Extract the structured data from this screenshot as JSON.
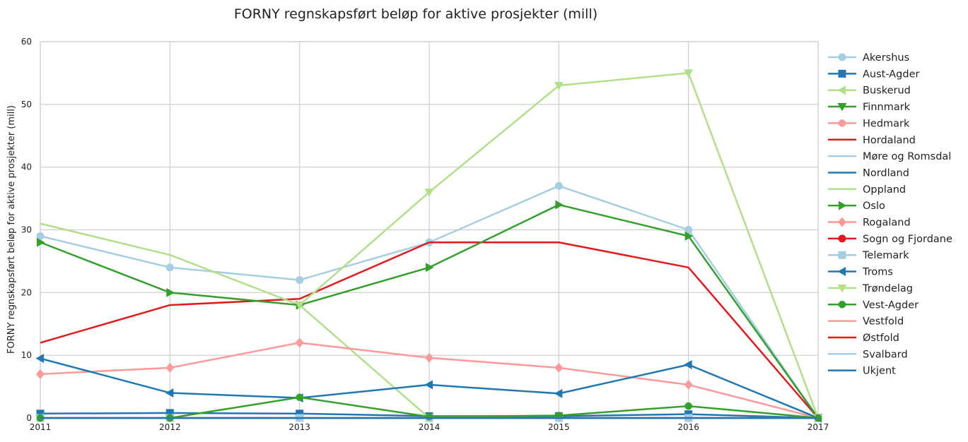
{
  "chart_data": {
    "type": "line",
    "title": "FORNY regnskapsført beløp for aktive prosjekter (mill)",
    "xlabel": "",
    "ylabel": "FORNY regnskapsført beløp for aktive prosjekter (mill)",
    "x": [
      2011,
      2012,
      2013,
      2014,
      2015,
      2016,
      2017
    ],
    "xlim": [
      2011,
      2017
    ],
    "ylim": [
      0,
      60
    ],
    "yticks": [
      0,
      10,
      20,
      30,
      40,
      50,
      60
    ],
    "grid": true,
    "legend_position": "outside-right",
    "series": [
      {
        "name": "Akershus",
        "color": "#a6cee3",
        "marker": "circle",
        "values": [
          29,
          24,
          22,
          28,
          37,
          30,
          0
        ]
      },
      {
        "name": "Aust-Agder",
        "color": "#1f78b4",
        "marker": "square",
        "values": [
          0.7,
          0.8,
          0.7,
          0.3,
          0.3,
          0.6,
          0
        ]
      },
      {
        "name": "Buskerud",
        "color": "#b2df8a",
        "marker": "triangle-left",
        "values": [
          0,
          0,
          0,
          0,
          0,
          0,
          0
        ]
      },
      {
        "name": "Finnmark",
        "color": "#33a02c",
        "marker": "triangle-down",
        "values": [
          0,
          0,
          0,
          0,
          0,
          0,
          0
        ]
      },
      {
        "name": "Hedmark",
        "color": "#fb9a99",
        "marker": "octagon",
        "values": [
          0,
          0,
          0,
          0,
          0,
          0,
          0
        ]
      },
      {
        "name": "Hordaland",
        "color": "#e31a1c",
        "marker": "none",
        "values": [
          12,
          18,
          19,
          28,
          28,
          24,
          0
        ]
      },
      {
        "name": "Møre og Romsdal",
        "color": "#a6cee3",
        "marker": "none",
        "values": [
          0,
          0,
          0,
          0,
          0,
          0,
          0
        ]
      },
      {
        "name": "Nordland",
        "color": "#1f78b4",
        "marker": "none",
        "values": [
          0,
          0,
          0,
          0,
          0,
          0,
          0
        ]
      },
      {
        "name": "Oppland",
        "color": "#b2df8a",
        "marker": "none",
        "values": [
          31,
          26,
          18,
          0,
          0,
          0,
          0
        ]
      },
      {
        "name": "Oslo",
        "color": "#33a02c",
        "marker": "triangle-right",
        "values": [
          28,
          20,
          18,
          24,
          34,
          29,
          0
        ]
      },
      {
        "name": "Rogaland",
        "color": "#fb9a99",
        "marker": "diamond",
        "values": [
          7,
          8,
          12,
          9.6,
          8,
          5.3,
          0
        ]
      },
      {
        "name": "Sogn og Fjordane",
        "color": "#e31a1c",
        "marker": "circle",
        "values": [
          0,
          0,
          0,
          0,
          0,
          0,
          0
        ]
      },
      {
        "name": "Telemark",
        "color": "#a6cee3",
        "marker": "square",
        "values": [
          0,
          0,
          0,
          0,
          0,
          0,
          0
        ]
      },
      {
        "name": "Troms",
        "color": "#1f78b4",
        "marker": "triangle-left",
        "values": [
          9.5,
          4,
          3.2,
          5.3,
          3.9,
          8.5,
          0
        ]
      },
      {
        "name": "Trøndelag",
        "color": "#b2df8a",
        "marker": "triangle-down",
        "values": [
          null,
          null,
          18,
          36,
          53,
          55,
          0
        ]
      },
      {
        "name": "Vest-Agder",
        "color": "#33a02c",
        "marker": "octagon",
        "values": [
          0,
          0,
          3.3,
          0.2,
          0.4,
          1.9,
          0
        ]
      },
      {
        "name": "Vestfold",
        "color": "#fb9a99",
        "marker": "none",
        "values": [
          0,
          0,
          0,
          0,
          0,
          0,
          0
        ]
      },
      {
        "name": "Østfold",
        "color": "#e31a1c",
        "marker": "none",
        "values": [
          0,
          0,
          0,
          0,
          0,
          0,
          0
        ]
      },
      {
        "name": "Svalbard",
        "color": "#a6cee3",
        "marker": "none",
        "values": [
          0,
          0,
          0,
          0,
          0,
          0,
          0
        ]
      },
      {
        "name": "Ukjent",
        "color": "#1f78b4",
        "marker": "none",
        "values": [
          0,
          0,
          0,
          0,
          0,
          0,
          0
        ]
      }
    ]
  }
}
